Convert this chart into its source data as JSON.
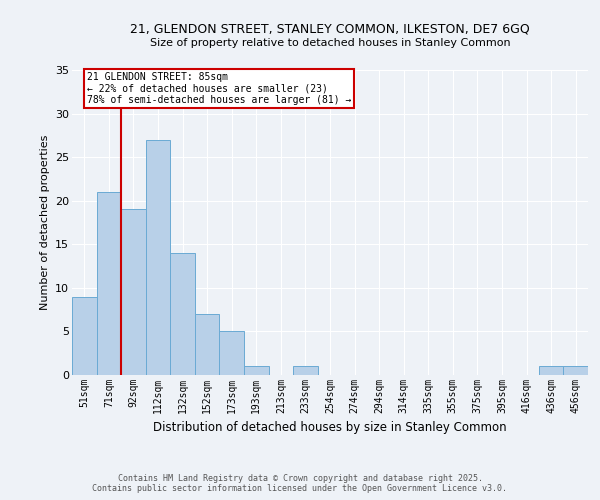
{
  "title1": "21, GLENDON STREET, STANLEY COMMON, ILKESTON, DE7 6GQ",
  "title2": "Size of property relative to detached houses in Stanley Common",
  "xlabel": "Distribution of detached houses by size in Stanley Common",
  "ylabel": "Number of detached properties",
  "categories": [
    "51sqm",
    "71sqm",
    "92sqm",
    "112sqm",
    "132sqm",
    "152sqm",
    "173sqm",
    "193sqm",
    "213sqm",
    "233sqm",
    "254sqm",
    "274sqm",
    "294sqm",
    "314sqm",
    "335sqm",
    "355sqm",
    "375sqm",
    "395sqm",
    "416sqm",
    "436sqm",
    "456sqm"
  ],
  "values": [
    9,
    21,
    19,
    27,
    14,
    7,
    5,
    1,
    0,
    1,
    0,
    0,
    0,
    0,
    0,
    0,
    0,
    0,
    0,
    1,
    1
  ],
  "bar_color": "#b8d0e8",
  "bar_edge_color": "#6aaad4",
  "background_color": "#eef2f7",
  "grid_color": "#ffffff",
  "vline_x": 1.5,
  "vline_color": "#cc0000",
  "annotation_text": "21 GLENDON STREET: 85sqm\n← 22% of detached houses are smaller (23)\n78% of semi-detached houses are larger (81) →",
  "annotation_box_color": "#ffffff",
  "annotation_box_edge": "#cc0000",
  "ylim": [
    0,
    35
  ],
  "yticks": [
    0,
    5,
    10,
    15,
    20,
    25,
    30,
    35
  ],
  "footer1": "Contains HM Land Registry data © Crown copyright and database right 2025.",
  "footer2": "Contains public sector information licensed under the Open Government Licence v3.0."
}
